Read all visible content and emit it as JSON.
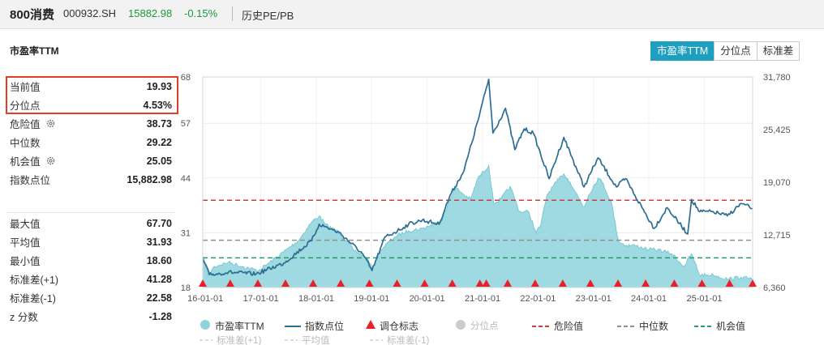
{
  "header": {
    "index_name": "800消费",
    "index_code": "000932.SH",
    "price": "15882.98",
    "change": "-0.15%",
    "history_link": "历史PE/PB"
  },
  "section_title": "市盈率TTM",
  "tabs": [
    {
      "label": "市盈率TTM",
      "active": true
    },
    {
      "label": "分位点",
      "active": false
    },
    {
      "label": "标准差",
      "active": false
    }
  ],
  "stats_top": [
    {
      "label": "当前值",
      "value": "19.93",
      "gear": false
    },
    {
      "label": "分位点",
      "value": "4.53%",
      "gear": false
    },
    {
      "label": "危险值",
      "value": "38.73",
      "gear": true
    },
    {
      "label": "中位数",
      "value": "29.22",
      "gear": false
    },
    {
      "label": "机会值",
      "value": "25.05",
      "gear": true
    },
    {
      "label": "指数点位",
      "value": "15,882.98",
      "gear": false
    }
  ],
  "stats_bottom": [
    {
      "label": "最大值",
      "value": "67.70"
    },
    {
      "label": "平均值",
      "value": "31.93"
    },
    {
      "label": "最小值",
      "value": "18.60"
    },
    {
      "label": "标准差(+1)",
      "value": "41.28"
    },
    {
      "label": "标准差(-1)",
      "value": "22.58"
    },
    {
      "label": "z 分数",
      "value": "-1.28"
    }
  ],
  "legend_row1": [
    {
      "key": "pe",
      "label": "市盈率TTM"
    },
    {
      "key": "index",
      "label": "指数点位"
    },
    {
      "key": "rebalance",
      "label": "调仓标志"
    },
    {
      "key": "percentile",
      "label": "分位点"
    },
    {
      "key": "danger",
      "label": "危险值"
    },
    {
      "key": "median",
      "label": "中位数"
    },
    {
      "key": "opportunity",
      "label": "机会值"
    }
  ],
  "legend_row2": [
    {
      "key": "sd_plus",
      "label": "标准差(+1)"
    },
    {
      "key": "mean",
      "label": "平均值"
    },
    {
      "key": "sd_minus",
      "label": "标准差(-1)"
    }
  ],
  "colors": {
    "pe_fill": "#8ed2dc",
    "pe_line": "#6cc3d0",
    "index_line": "#2c6d92",
    "rebalance": "#e8202a",
    "danger": "#c8403a",
    "median": "#909090",
    "opportunity": "#2c9a68",
    "percentile": "#cccccc",
    "accent": "#1f9fc0"
  },
  "chart_data": {
    "type": "area",
    "title": "市盈率TTM",
    "x_range": [
      "2015-12-15",
      "2025-11-15"
    ],
    "x_tick_labels": [
      "16-01-01",
      "17-01-01",
      "18-01-01",
      "19-01-01",
      "20-01-01",
      "21-01-01",
      "22-01-01",
      "23-01-01",
      "24-01-01",
      "25-01-01"
    ],
    "left_axis": {
      "label": "市盈率TTM",
      "ylim": [
        18,
        68
      ],
      "ticks": [
        18,
        31,
        44,
        57,
        68
      ],
      "tick_labels": [
        "18",
        "31",
        "44",
        "57",
        "68"
      ]
    },
    "right_axis": {
      "label": "指数点位",
      "ylim": [
        6360,
        31780
      ],
      "ticks": [
        6360,
        12715,
        19070,
        25425,
        31780
      ],
      "tick_labels": [
        "6,360",
        "12,715",
        "19,070",
        "25,425",
        "31,780"
      ]
    },
    "reference_lines": {
      "danger": 38.73,
      "median": 29.22,
      "opportunity": 25.05
    },
    "series": [
      {
        "name": "市盈率TTM",
        "axis": "left",
        "points": [
          [
            "2015-12-15",
            25.5
          ],
          [
            "2016-01-20",
            21.0
          ],
          [
            "2016-03-01",
            23.0
          ],
          [
            "2016-06-01",
            24.0
          ],
          [
            "2016-09-01",
            23.0
          ],
          [
            "2016-12-15",
            22.0
          ],
          [
            "2017-03-01",
            24.0
          ],
          [
            "2017-06-01",
            26.5
          ],
          [
            "2017-09-01",
            29.0
          ],
          [
            "2017-12-01",
            33.5
          ],
          [
            "2018-01-20",
            35.0
          ],
          [
            "2018-03-01",
            33.0
          ],
          [
            "2018-06-01",
            31.0
          ],
          [
            "2018-09-01",
            27.0
          ],
          [
            "2018-12-01",
            25.0
          ],
          [
            "2019-01-03",
            22.5
          ],
          [
            "2019-03-01",
            27.0
          ],
          [
            "2019-06-01",
            30.0
          ],
          [
            "2019-09-01",
            31.5
          ],
          [
            "2019-12-01",
            32.0
          ],
          [
            "2020-03-15",
            33.5
          ],
          [
            "2020-05-01",
            36.0
          ],
          [
            "2020-07-01",
            42.0
          ],
          [
            "2020-09-01",
            40.0
          ],
          [
            "2020-10-15",
            39.0
          ],
          [
            "2020-12-01",
            44.0
          ],
          [
            "2021-02-10",
            47.0
          ],
          [
            "2021-03-15",
            38.0
          ],
          [
            "2021-05-01",
            39.0
          ],
          [
            "2021-07-01",
            42.0
          ],
          [
            "2021-09-01",
            36.0
          ],
          [
            "2021-11-01",
            36.0
          ],
          [
            "2021-12-20",
            31.0
          ],
          [
            "2022-01-20",
            33.0
          ],
          [
            "2022-03-01",
            40.0
          ],
          [
            "2022-05-01",
            43.0
          ],
          [
            "2022-06-20",
            45.0
          ],
          [
            "2022-08-01",
            43.0
          ],
          [
            "2022-10-31",
            37.0
          ],
          [
            "2022-12-01",
            40.0
          ],
          [
            "2023-02-01",
            44.0
          ],
          [
            "2023-03-01",
            43.0
          ],
          [
            "2023-05-01",
            38.0
          ],
          [
            "2023-06-15",
            29.0
          ],
          [
            "2023-08-01",
            28.0
          ],
          [
            "2023-10-01",
            28.0
          ],
          [
            "2024-01-01",
            27.0
          ],
          [
            "2024-03-01",
            27.0
          ],
          [
            "2024-06-01",
            26.0
          ],
          [
            "2024-08-20",
            23.0
          ],
          [
            "2024-10-08",
            26.0
          ],
          [
            "2024-12-01",
            21.0
          ],
          [
            "2025-03-01",
            21.0
          ],
          [
            "2025-06-01",
            20.0
          ],
          [
            "2025-09-01",
            20.5
          ],
          [
            "2025-11-15",
            19.93
          ]
        ]
      },
      {
        "name": "指数点位",
        "axis": "right",
        "points": [
          [
            "2015-12-15",
            9800
          ],
          [
            "2016-01-28",
            7900
          ],
          [
            "2016-06-01",
            8200
          ],
          [
            "2016-12-01",
            8000
          ],
          [
            "2017-06-01",
            9300
          ],
          [
            "2017-12-01",
            12000
          ],
          [
            "2018-01-20",
            14000
          ],
          [
            "2018-06-01",
            13000
          ],
          [
            "2018-10-30",
            10500
          ],
          [
            "2019-01-03",
            8400
          ],
          [
            "2019-04-01",
            12500
          ],
          [
            "2019-06-01",
            13000
          ],
          [
            "2019-09-01",
            14000
          ],
          [
            "2019-12-01",
            14500
          ],
          [
            "2020-03-20",
            14000
          ],
          [
            "2020-06-01",
            17500
          ],
          [
            "2020-09-01",
            20500
          ],
          [
            "2020-12-01",
            26500
          ],
          [
            "2021-02-10",
            31500
          ],
          [
            "2021-03-10",
            25000
          ],
          [
            "2021-06-01",
            28000
          ],
          [
            "2021-08-01",
            23000
          ],
          [
            "2021-10-01",
            25500
          ],
          [
            "2021-12-01",
            25000
          ],
          [
            "2022-03-15",
            19500
          ],
          [
            "2022-06-20",
            24500
          ],
          [
            "2022-10-31",
            18500
          ],
          [
            "2023-01-31",
            22000
          ],
          [
            "2023-06-01",
            18500
          ],
          [
            "2023-08-01",
            19500
          ],
          [
            "2023-10-01",
            17500
          ],
          [
            "2024-02-05",
            13500
          ],
          [
            "2024-05-01",
            16000
          ],
          [
            "2024-09-13",
            12800
          ],
          [
            "2024-10-08",
            17000
          ],
          [
            "2024-12-01",
            15500
          ],
          [
            "2025-03-01",
            15500
          ],
          [
            "2025-06-01",
            15000
          ],
          [
            "2025-09-01",
            16500
          ],
          [
            "2025-11-15",
            15883
          ]
        ]
      }
    ],
    "rebalance_markers": [
      "2015-12-15",
      "2016-06-13",
      "2016-12-12",
      "2017-06-12",
      "2017-12-11",
      "2018-06-11",
      "2018-12-17",
      "2019-06-17",
      "2019-12-16",
      "2020-06-15",
      "2020-12-14",
      "2021-01-25",
      "2021-06-15",
      "2021-12-13",
      "2022-06-13",
      "2022-12-12",
      "2023-06-12",
      "2023-12-11",
      "2024-06-17",
      "2024-12-16",
      "2025-06-16",
      "2025-11-15"
    ]
  }
}
